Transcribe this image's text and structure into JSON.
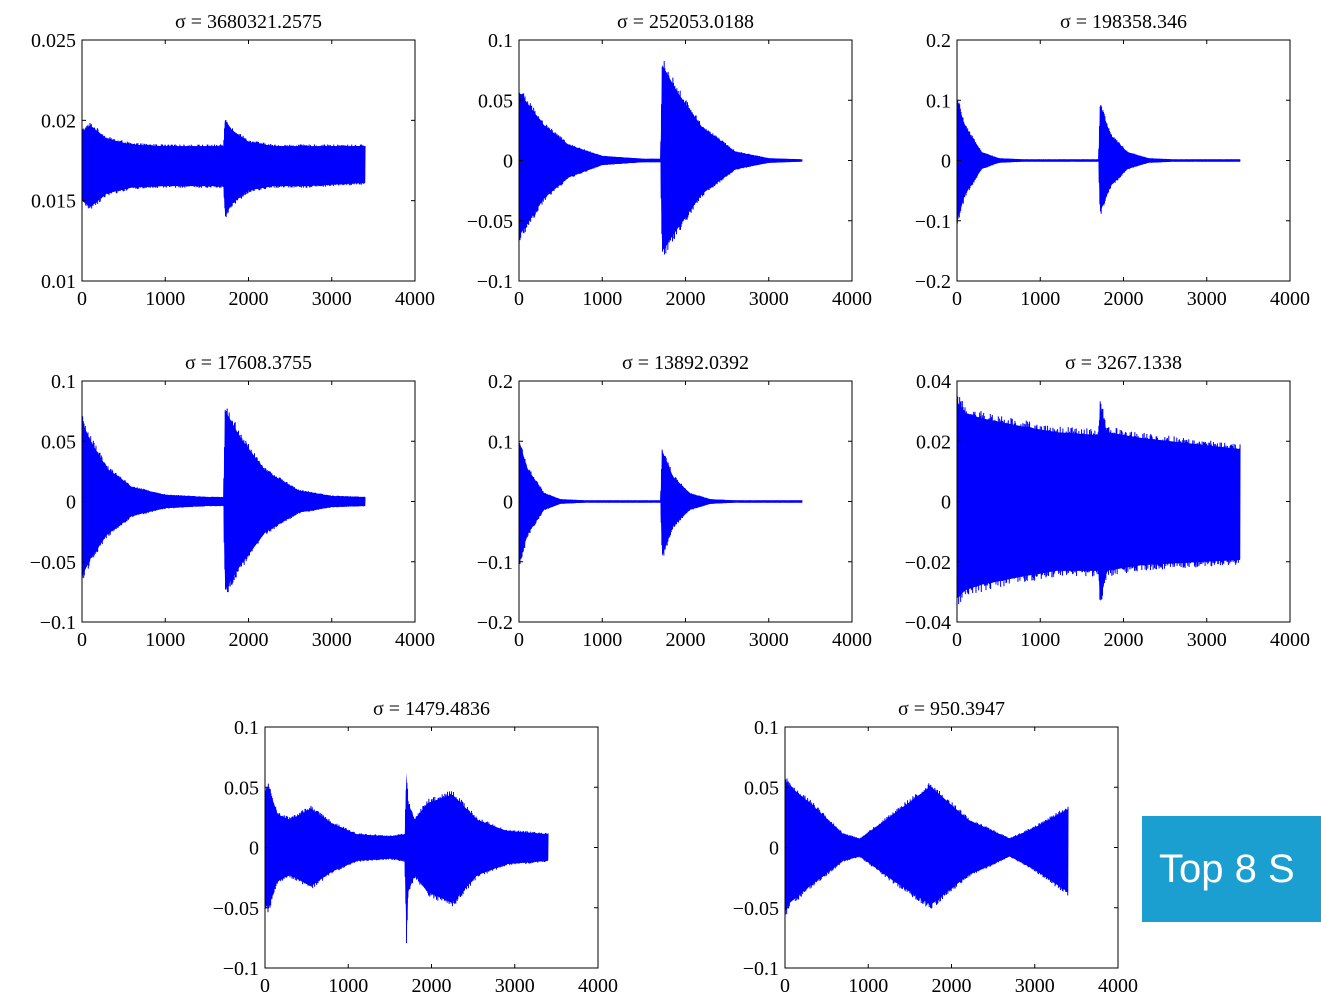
{
  "figure": {
    "overlay_label": "Top 8 S",
    "overlay_color": "#1a9fd0",
    "series_color": "#0000ff"
  },
  "chart_data": [
    {
      "type": "line",
      "title": "σ = 3680321.2575",
      "xlim": [
        0,
        4000
      ],
      "ylim": [
        0.01,
        0.025
      ],
      "xticks": [
        0,
        1000,
        2000,
        3000,
        4000
      ],
      "xtick_labels": [
        "0",
        "1000",
        "2000",
        "3000",
        "4000"
      ],
      "yticks": [
        0.01,
        0.015,
        0.02,
        0.025
      ],
      "ytick_labels": [
        "0.01",
        "0.015",
        "0.02",
        "0.025"
      ],
      "n_points": 3400,
      "envelope_x": [
        0,
        100,
        300,
        600,
        1000,
        1700,
        1720,
        1800,
        2000,
        2300,
        2700,
        3400
      ],
      "envelope_upper": [
        0.0195,
        0.0199,
        0.019,
        0.0186,
        0.0185,
        0.0185,
        0.0203,
        0.0196,
        0.0188,
        0.0185,
        0.0185,
        0.0185
      ],
      "envelope_lower": [
        0.0148,
        0.0144,
        0.0153,
        0.0157,
        0.0158,
        0.0158,
        0.0138,
        0.0146,
        0.0155,
        0.0158,
        0.0158,
        0.016
      ],
      "grid": false
    },
    {
      "type": "line",
      "title": "σ = 252053.0188",
      "xlim": [
        0,
        4000
      ],
      "ylim": [
        -0.1,
        0.1
      ],
      "xticks": [
        0,
        1000,
        2000,
        3000,
        4000
      ],
      "xtick_labels": [
        "0",
        "1000",
        "2000",
        "3000",
        "4000"
      ],
      "yticks": [
        -0.1,
        -0.05,
        0,
        0.05,
        0.1
      ],
      "ytick_labels": [
        "−0.1",
        "−0.05",
        "0",
        "0.05",
        "0.1"
      ],
      "n_points": 3400,
      "envelope_x": [
        0,
        100,
        300,
        600,
        1000,
        1500,
        1700,
        1720,
        1900,
        2200,
        2600,
        3000,
        3400
      ],
      "envelope_upper": [
        0.062,
        0.052,
        0.032,
        0.014,
        0.004,
        0.0015,
        0.0015,
        0.086,
        0.062,
        0.03,
        0.008,
        0.002,
        0.001
      ],
      "envelope_lower": [
        -0.068,
        -0.057,
        -0.034,
        -0.015,
        -0.004,
        -0.0015,
        -0.0015,
        -0.082,
        -0.062,
        -0.03,
        -0.008,
        -0.002,
        -0.001
      ],
      "grid": false
    },
    {
      "type": "line",
      "title": "σ = 198358.346",
      "xlim": [
        0,
        4000
      ],
      "ylim": [
        -0.2,
        0.2
      ],
      "xticks": [
        0,
        1000,
        2000,
        3000,
        4000
      ],
      "xtick_labels": [
        "0",
        "1000",
        "2000",
        "3000",
        "4000"
      ],
      "yticks": [
        -0.2,
        -0.1,
        0,
        0.1,
        0.2
      ],
      "ytick_labels": [
        "−0.2",
        "−0.1",
        "0",
        "0.1",
        "0.2"
      ],
      "n_points": 3400,
      "envelope_x": [
        0,
        100,
        300,
        500,
        800,
        1700,
        1720,
        1850,
        2050,
        2300,
        2600,
        3400
      ],
      "envelope_upper": [
        0.11,
        0.06,
        0.015,
        0.004,
        0.002,
        0.002,
        0.098,
        0.045,
        0.015,
        0.004,
        0.002,
        0.002
      ],
      "envelope_lower": [
        -0.11,
        -0.06,
        -0.015,
        -0.004,
        -0.002,
        -0.002,
        -0.093,
        -0.045,
        -0.015,
        -0.004,
        -0.002,
        -0.002
      ],
      "grid": false
    },
    {
      "type": "line",
      "title": "σ = 17608.3755",
      "xlim": [
        0,
        4000
      ],
      "ylim": [
        -0.1,
        0.1
      ],
      "xticks": [
        0,
        1000,
        2000,
        3000,
        4000
      ],
      "xtick_labels": [
        "0",
        "1000",
        "2000",
        "3000",
        "4000"
      ],
      "yticks": [
        -0.1,
        -0.05,
        0,
        0.05,
        0.1
      ],
      "ytick_labels": [
        "−0.1",
        "−0.05",
        "0",
        "0.05",
        "0.1"
      ],
      "n_points": 3400,
      "envelope_x": [
        0,
        100,
        300,
        600,
        1000,
        1500,
        1700,
        1720,
        1900,
        2200,
        2600,
        3000,
        3400
      ],
      "envelope_upper": [
        0.072,
        0.055,
        0.03,
        0.013,
        0.006,
        0.004,
        0.004,
        0.082,
        0.058,
        0.028,
        0.01,
        0.005,
        0.004
      ],
      "envelope_lower": [
        -0.068,
        -0.052,
        -0.03,
        -0.013,
        -0.006,
        -0.004,
        -0.004,
        -0.08,
        -0.058,
        -0.028,
        -0.01,
        -0.005,
        -0.004
      ],
      "grid": false
    },
    {
      "type": "line",
      "title": "σ = 13892.0392",
      "xlim": [
        0,
        4000
      ],
      "ylim": [
        -0.2,
        0.2
      ],
      "xticks": [
        0,
        1000,
        2000,
        3000,
        4000
      ],
      "xtick_labels": [
        "0",
        "1000",
        "2000",
        "3000",
        "4000"
      ],
      "yticks": [
        -0.2,
        -0.1,
        0,
        0.1,
        0.2
      ],
      "ytick_labels": [
        "−0.2",
        "−0.1",
        "0",
        "0.1",
        "0.2"
      ],
      "n_points": 3400,
      "envelope_x": [
        0,
        100,
        300,
        500,
        800,
        1700,
        1720,
        1850,
        2050,
        2300,
        2600,
        3400
      ],
      "envelope_upper": [
        0.11,
        0.06,
        0.015,
        0.004,
        0.002,
        0.002,
        0.092,
        0.045,
        0.015,
        0.004,
        0.002,
        0.002
      ],
      "envelope_lower": [
        -0.115,
        -0.06,
        -0.015,
        -0.004,
        -0.002,
        -0.002,
        -0.098,
        -0.045,
        -0.015,
        -0.004,
        -0.002,
        -0.002
      ],
      "grid": false
    },
    {
      "type": "line",
      "title": "σ = 3267.1338",
      "xlim": [
        0,
        4000
      ],
      "ylim": [
        -0.04,
        0.04
      ],
      "xticks": [
        0,
        1000,
        2000,
        3000,
        4000
      ],
      "xtick_labels": [
        "0",
        "1000",
        "2000",
        "3000",
        "4000"
      ],
      "yticks": [
        -0.04,
        -0.02,
        0,
        0.02,
        0.04
      ],
      "ytick_labels": [
        "−0.04",
        "−0.02",
        "0",
        "0.02",
        "0.04"
      ],
      "n_points": 3400,
      "envelope_x": [
        0,
        100,
        300,
        800,
        1200,
        1700,
        1720,
        1800,
        2200,
        2800,
        3400
      ],
      "envelope_upper": [
        0.036,
        0.032,
        0.03,
        0.027,
        0.025,
        0.024,
        0.035,
        0.025,
        0.023,
        0.021,
        0.019
      ],
      "envelope_lower": [
        -0.035,
        -0.032,
        -0.03,
        -0.027,
        -0.025,
        -0.025,
        -0.036,
        -0.025,
        -0.023,
        -0.022,
        -0.021
      ],
      "grid": false
    },
    {
      "type": "line",
      "title": "σ = 1479.4836",
      "xlim": [
        0,
        4000
      ],
      "ylim": [
        -0.1,
        0.1
      ],
      "xticks": [
        0,
        1000,
        2000,
        3000,
        4000
      ],
      "xtick_labels": [
        "0",
        "1000",
        "2000",
        "3000",
        "4000"
      ],
      "yticks": [
        -0.1,
        -0.05,
        0,
        0.05,
        0.1
      ],
      "ytick_labels": [
        "−0.1",
        "−0.05",
        "0",
        "0.05",
        "0.1"
      ],
      "n_points": 3400,
      "envelope_x": [
        0,
        40,
        150,
        300,
        550,
        800,
        1100,
        1500,
        1680,
        1700,
        1720,
        1800,
        1950,
        2250,
        2550,
        2900,
        3400
      ],
      "envelope_upper": [
        0.05,
        0.055,
        0.03,
        0.025,
        0.035,
        0.022,
        0.012,
        0.01,
        0.012,
        0.068,
        0.04,
        0.025,
        0.04,
        0.048,
        0.025,
        0.015,
        0.012
      ],
      "envelope_lower": [
        -0.05,
        -0.055,
        -0.03,
        -0.025,
        -0.035,
        -0.022,
        -0.012,
        -0.01,
        -0.012,
        -0.082,
        -0.04,
        -0.025,
        -0.04,
        -0.05,
        -0.025,
        -0.015,
        -0.012
      ],
      "grid": false
    },
    {
      "type": "line",
      "title": "σ = 950.3947",
      "xlim": [
        0,
        4000
      ],
      "ylim": [
        -0.1,
        0.1
      ],
      "xticks": [
        0,
        1000,
        2000,
        3000,
        4000
      ],
      "xtick_labels": [
        "0",
        "1000",
        "2000",
        "3000",
        "4000"
      ],
      "yticks": [
        -0.1,
        -0.05,
        0,
        0.05,
        0.1
      ],
      "ytick_labels": [
        "−0.1",
        "−0.05",
        "0",
        "0.05",
        "0.1"
      ],
      "n_points": 3400,
      "envelope_x": [
        0,
        60,
        300,
        700,
        900,
        1300,
        1750,
        2200,
        2700,
        3000,
        3400
      ],
      "envelope_upper": [
        0.06,
        0.055,
        0.04,
        0.012,
        0.008,
        0.03,
        0.055,
        0.025,
        0.008,
        0.018,
        0.035
      ],
      "envelope_lower": [
        -0.058,
        -0.05,
        -0.035,
        -0.012,
        -0.008,
        -0.03,
        -0.052,
        -0.025,
        -0.008,
        -0.02,
        -0.04
      ],
      "grid": false
    }
  ]
}
